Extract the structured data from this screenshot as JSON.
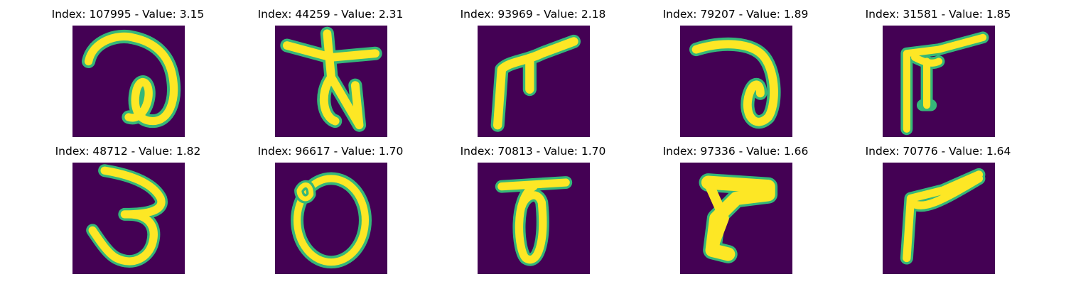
{
  "figure": {
    "colormap": "viridis",
    "background_color": "#440154",
    "stroke_color": "#fde725",
    "edge_color": "#35b779",
    "panels": [
      {
        "title": "Index: 107995 - Value: 3.15"
      },
      {
        "title": "Index: 44259 - Value: 2.31"
      },
      {
        "title": "Index: 93969 - Value: 2.18"
      },
      {
        "title": "Index: 79207 - Value: 1.89"
      },
      {
        "title": "Index: 31581 - Value: 1.85"
      },
      {
        "title": "Index: 48712 - Value: 1.82"
      },
      {
        "title": "Index: 96617 - Value: 1.70"
      },
      {
        "title": "Index: 70813 - Value: 1.70"
      },
      {
        "title": "Index: 97336 - Value: 1.66"
      },
      {
        "title": "Index: 70776 - Value: 1.64"
      }
    ]
  }
}
